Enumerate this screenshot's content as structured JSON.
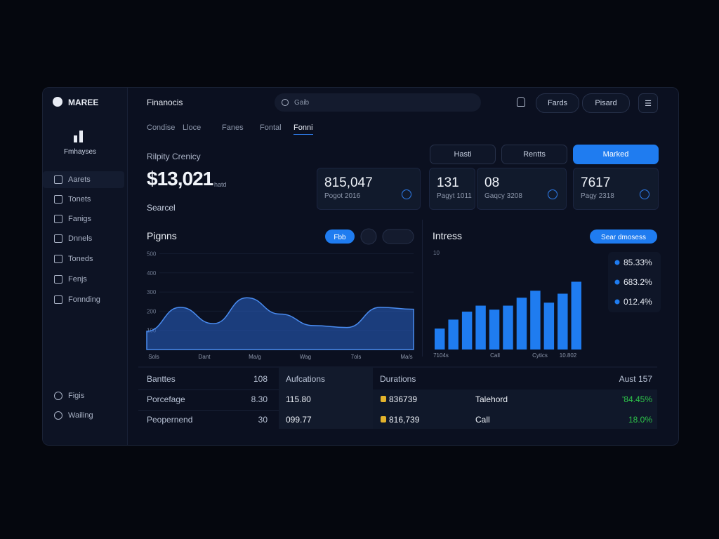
{
  "sidebar": {
    "brand": "MAREE",
    "section": "Fmhayses",
    "nav": [
      "Aarets",
      "Tonets",
      "Fanigs",
      "Dnnels",
      "Toneds",
      "Fenjs",
      "Fonnding"
    ],
    "bottom": [
      "Figis",
      "Wailing"
    ]
  },
  "header": {
    "title": "Finanocis",
    "search": "Gaib",
    "buttons": [
      "Fards",
      "Pisard"
    ]
  },
  "tabs": [
    "Condise",
    "Lloce",
    "Fanes",
    "Fontal",
    "Fonni"
  ],
  "summary": {
    "label": "Rilpity Crenicy",
    "value": "$13,021",
    "unit": "hatd",
    "select": "Searcel"
  },
  "filters": [
    "Hasti",
    "Rentts",
    "Marked"
  ],
  "cards": [
    {
      "value": "815,047",
      "label": "Pogot 2016"
    },
    {
      "value": "131",
      "label": "Pagyt 1011"
    },
    {
      "value": "08",
      "label": "Gaqcy 3208"
    },
    {
      "value": "7617",
      "label": "Pagy 2318"
    }
  ],
  "charts": [
    {
      "type": "area",
      "title": "Pignns",
      "button": "Fbb",
      "color": "#2a63c9",
      "categories": [
        "Sols",
        "Dant",
        "Ma/g",
        "Wag",
        "7ols",
        "Ma/s"
      ],
      "x": [
        0,
        1,
        2,
        3,
        4,
        5,
        6,
        7,
        8
      ],
      "values": [
        95,
        220,
        135,
        270,
        185,
        125,
        115,
        220,
        210
      ],
      "xlim": [
        0,
        8
      ],
      "ylim": [
        0,
        520
      ],
      "yticks": [
        100,
        200,
        300,
        400,
        500
      ]
    },
    {
      "type": "bar",
      "title": "Intress",
      "button": "Sear dmosess",
      "axis_label": "10",
      "color": "#1f7cf0",
      "categories": [
        "7104s",
        "Call",
        "Cytics",
        "10.802"
      ],
      "values": [
        21,
        30,
        38,
        44,
        40,
        44,
        52,
        59,
        47,
        56,
        68
      ],
      "ylim": [
        0,
        100
      ],
      "legend": [
        "85.33%",
        "683.2%",
        "012.4%"
      ]
    }
  ],
  "table": {
    "left": [
      [
        "Banttes",
        "108"
      ],
      [
        "Porcefage",
        "8.30"
      ],
      [
        "Peopernend",
        "30"
      ]
    ],
    "middle": {
      "header": "Aufcations",
      "rows": [
        "115.80",
        "099.77"
      ]
    },
    "right": {
      "header": "Durations",
      "header_right": "Aust 157",
      "rows": [
        [
          "836739",
          "Talehord",
          "'84.45%"
        ],
        [
          "816,739",
          "Call",
          "18.0%"
        ]
      ]
    }
  }
}
